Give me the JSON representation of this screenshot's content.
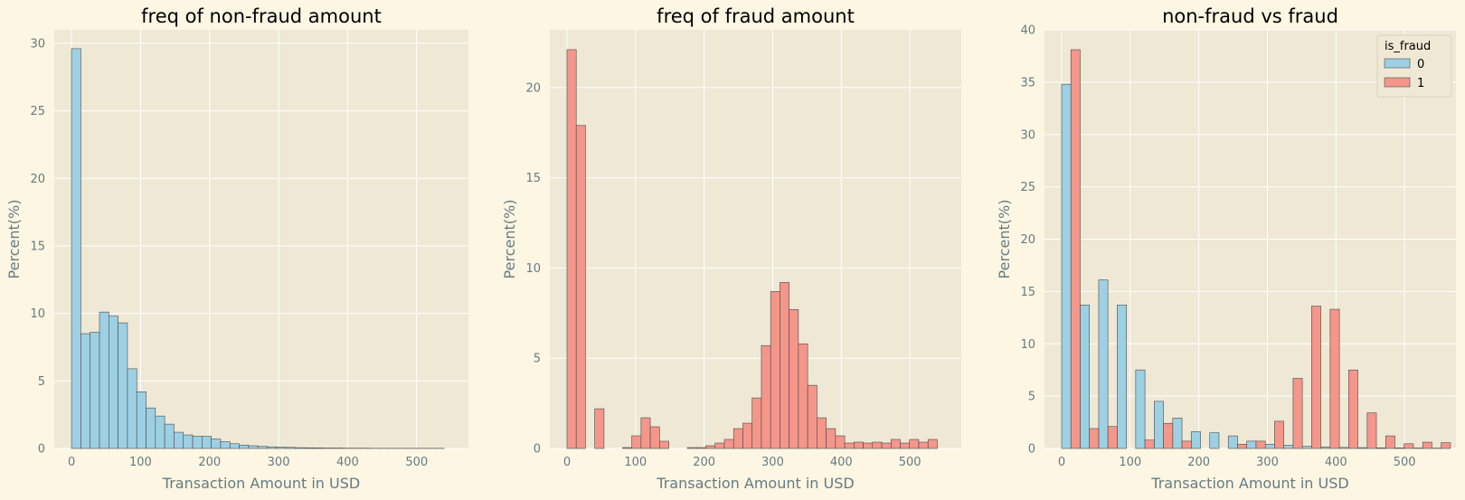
{
  "colors": {
    "figure_bg": "#fdf6e3",
    "axes_bg": "#eee8d5",
    "grid": "#ffffff",
    "non_fraud": "#9ed0e4",
    "fraud": "#f5968a",
    "bar_edge": "#4a4a4a"
  },
  "chart_data": [
    {
      "type": "bar",
      "title": "freq of non-fraud amount",
      "xlabel": "Transaction Amount in USD",
      "ylabel": "Percent(%)",
      "xlim": [
        -25,
        575
      ],
      "ylim": [
        0,
        31
      ],
      "xticks": [
        0,
        100,
        200,
        300,
        400,
        500
      ],
      "yticks": [
        0,
        5,
        10,
        15,
        20,
        25,
        30
      ],
      "grid": true,
      "series": [
        {
          "color": "#9ed0e4",
          "x_start": 0,
          "bin_width": 13.5,
          "values": [
            29.6,
            8.5,
            8.6,
            10.1,
            9.8,
            9.3,
            5.9,
            4.2,
            3.0,
            2.4,
            1.8,
            1.2,
            1.0,
            0.9,
            0.9,
            0.7,
            0.5,
            0.35,
            0.25,
            0.2,
            0.15,
            0.12,
            0.1,
            0.08,
            0.06,
            0.05,
            0.04,
            0.03,
            0.03,
            0.02,
            0.02,
            0.02,
            0.01,
            0.01,
            0.01,
            0.01,
            0.01,
            0.01,
            0.01,
            0.01
          ]
        }
      ]
    },
    {
      "type": "bar",
      "title": "freq of fraud amount",
      "xlabel": "Transaction Amount in USD",
      "ylabel": "Percent(%)",
      "xlim": [
        -25,
        575
      ],
      "ylim": [
        0,
        23.2
      ],
      "xticks": [
        0,
        100,
        200,
        300,
        400,
        500
      ],
      "yticks": [
        0,
        5,
        10,
        15,
        20
      ],
      "grid": true,
      "series": [
        {
          "color": "#f5968a",
          "x_start": 0,
          "bin_width": 13.5,
          "values": [
            22.1,
            17.9,
            0,
            2.2,
            0,
            0,
            0.05,
            0.7,
            1.7,
            1.2,
            0.4,
            0,
            0,
            0.05,
            0.05,
            0.15,
            0.3,
            0.5,
            1.1,
            1.4,
            2.8,
            5.7,
            8.7,
            9.2,
            7.7,
            5.8,
            3.5,
            1.7,
            1.1,
            0.7,
            0.3,
            0.35,
            0.3,
            0.35,
            0.3,
            0.5,
            0.3,
            0.5,
            0.35,
            0.5
          ]
        }
      ]
    },
    {
      "type": "bar",
      "title": "non-fraud vs fraud",
      "xlabel": "Transaction Amount in USD",
      "ylabel": "Percent(%)",
      "xlim": [
        -25,
        575
      ],
      "ylim": [
        0,
        40
      ],
      "xticks": [
        0,
        100,
        200,
        300,
        400,
        500
      ],
      "yticks": [
        0,
        5,
        10,
        15,
        20,
        25,
        30,
        35,
        40
      ],
      "grid": true,
      "legend": {
        "title": "is_fraud",
        "position": "top-right"
      },
      "x_start": 0,
      "bin_width": 27,
      "series": [
        {
          "name": "0",
          "color": "#9ed0e4",
          "values": [
            34.8,
            13.7,
            16.1,
            13.7,
            7.5,
            4.5,
            2.9,
            1.6,
            1.5,
            1.2,
            0.7,
            0.4,
            0.3,
            0.2,
            0.15,
            0.1,
            0.08,
            0.06,
            0.05,
            0.04,
            0.03
          ]
        },
        {
          "name": "1",
          "color": "#f5968a",
          "values": [
            38.1,
            1.9,
            2.1,
            0,
            0.8,
            2.4,
            0.7,
            0,
            0,
            0.4,
            0.7,
            2.6,
            6.7,
            13.6,
            13.3,
            7.5,
            3.4,
            1.2,
            0.45,
            0.6,
            0.55
          ]
        }
      ]
    }
  ]
}
